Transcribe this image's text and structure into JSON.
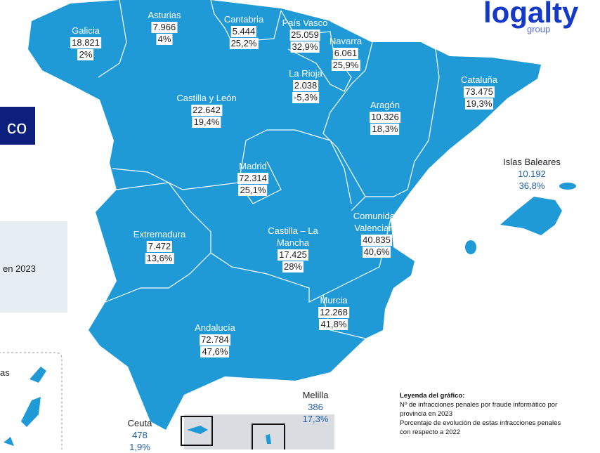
{
  "logo": {
    "name": "logalty",
    "tagline": "group"
  },
  "side_panel": {
    "title_fragment": "co",
    "text_fragment": "en 2023",
    "inset_fragment": "as"
  },
  "regions": [
    {
      "name": "Galicia",
      "infractions": "18.821",
      "change": "2%"
    },
    {
      "name": "Asturias",
      "infractions": "7.966",
      "change": "4%"
    },
    {
      "name": "Cantabria",
      "infractions": "5.444",
      "change": "25,2%"
    },
    {
      "name": "País Vasco",
      "infractions": "25.059",
      "change": "32,9%"
    },
    {
      "name": "Navarra",
      "infractions": "6.061",
      "change": "25,9%"
    },
    {
      "name": "La Rioja",
      "infractions": "2.038",
      "change": "-5,3%"
    },
    {
      "name": "Castilla y León",
      "infractions": "22.642",
      "change": "19,4%"
    },
    {
      "name": "Aragón",
      "infractions": "10.326",
      "change": "18,3%"
    },
    {
      "name": "Cataluña",
      "infractions": "73.475",
      "change": "19,3%"
    },
    {
      "name": "Madrid",
      "infractions": "72.314",
      "change": "25,1%"
    },
    {
      "name": "Extremadura",
      "infractions": "7.472",
      "change": "13,6%"
    },
    {
      "name": "Castilla – La Mancha",
      "infractions": "17.425",
      "change": "28%"
    },
    {
      "name": "Comunidad Valenciana",
      "infractions": "40.835",
      "change": "40,6%"
    },
    {
      "name": "Murcia",
      "infractions": "12.268",
      "change": "41,8%"
    },
    {
      "name": "Andalucía",
      "infractions": "72.784",
      "change": "47,6%"
    }
  ],
  "outside_regions": [
    {
      "name": "Islas Baleares",
      "infractions": "10.192",
      "change": "36,8%"
    },
    {
      "name": "Melilla",
      "infractions": "386",
      "change": "17,3%"
    },
    {
      "name": "Ceuta",
      "infractions": "478",
      "change": "1,9%"
    }
  ],
  "legend": {
    "title": "Leyenda del gráfico:",
    "lines": [
      "Nº de infracciones penales por fraude informático por",
      "provincia en 2023",
      "Porcentaje de evolución de estas infracciones penales",
      "con respecto a 2022"
    ]
  }
}
